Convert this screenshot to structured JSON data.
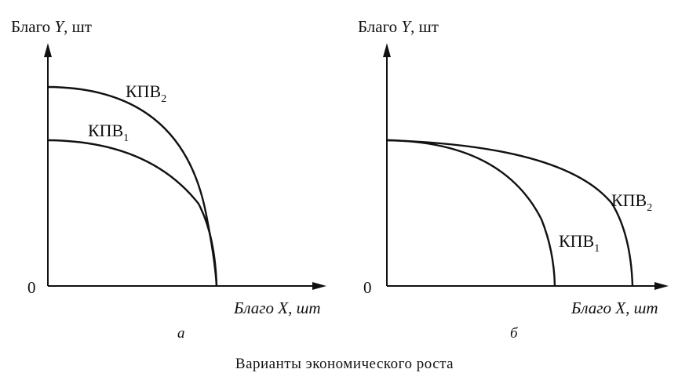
{
  "caption": "Варианты экономического роста",
  "panels": [
    {
      "id": "a",
      "label": "а",
      "y_axis_label": {
        "prefix": "Благо ",
        "var": "Y",
        "suffix": ", шт"
      },
      "x_axis_label": {
        "prefix": "Благо ",
        "var": "X",
        "suffix": ", шт"
      },
      "origin_label": "0",
      "curves": [
        {
          "name": "КПВ",
          "index": "2"
        },
        {
          "name": "КПВ",
          "index": "1"
        }
      ]
    },
    {
      "id": "b",
      "label": "б",
      "y_axis_label": {
        "prefix": "Благо ",
        "var": "Y",
        "suffix": ", шт"
      },
      "x_axis_label": {
        "prefix": "Благо ",
        "var": "X",
        "suffix": ", шт"
      },
      "origin_label": "0",
      "curves": [
        {
          "name": "КПВ",
          "index": "2"
        },
        {
          "name": "КПВ",
          "index": "1"
        }
      ]
    }
  ]
}
